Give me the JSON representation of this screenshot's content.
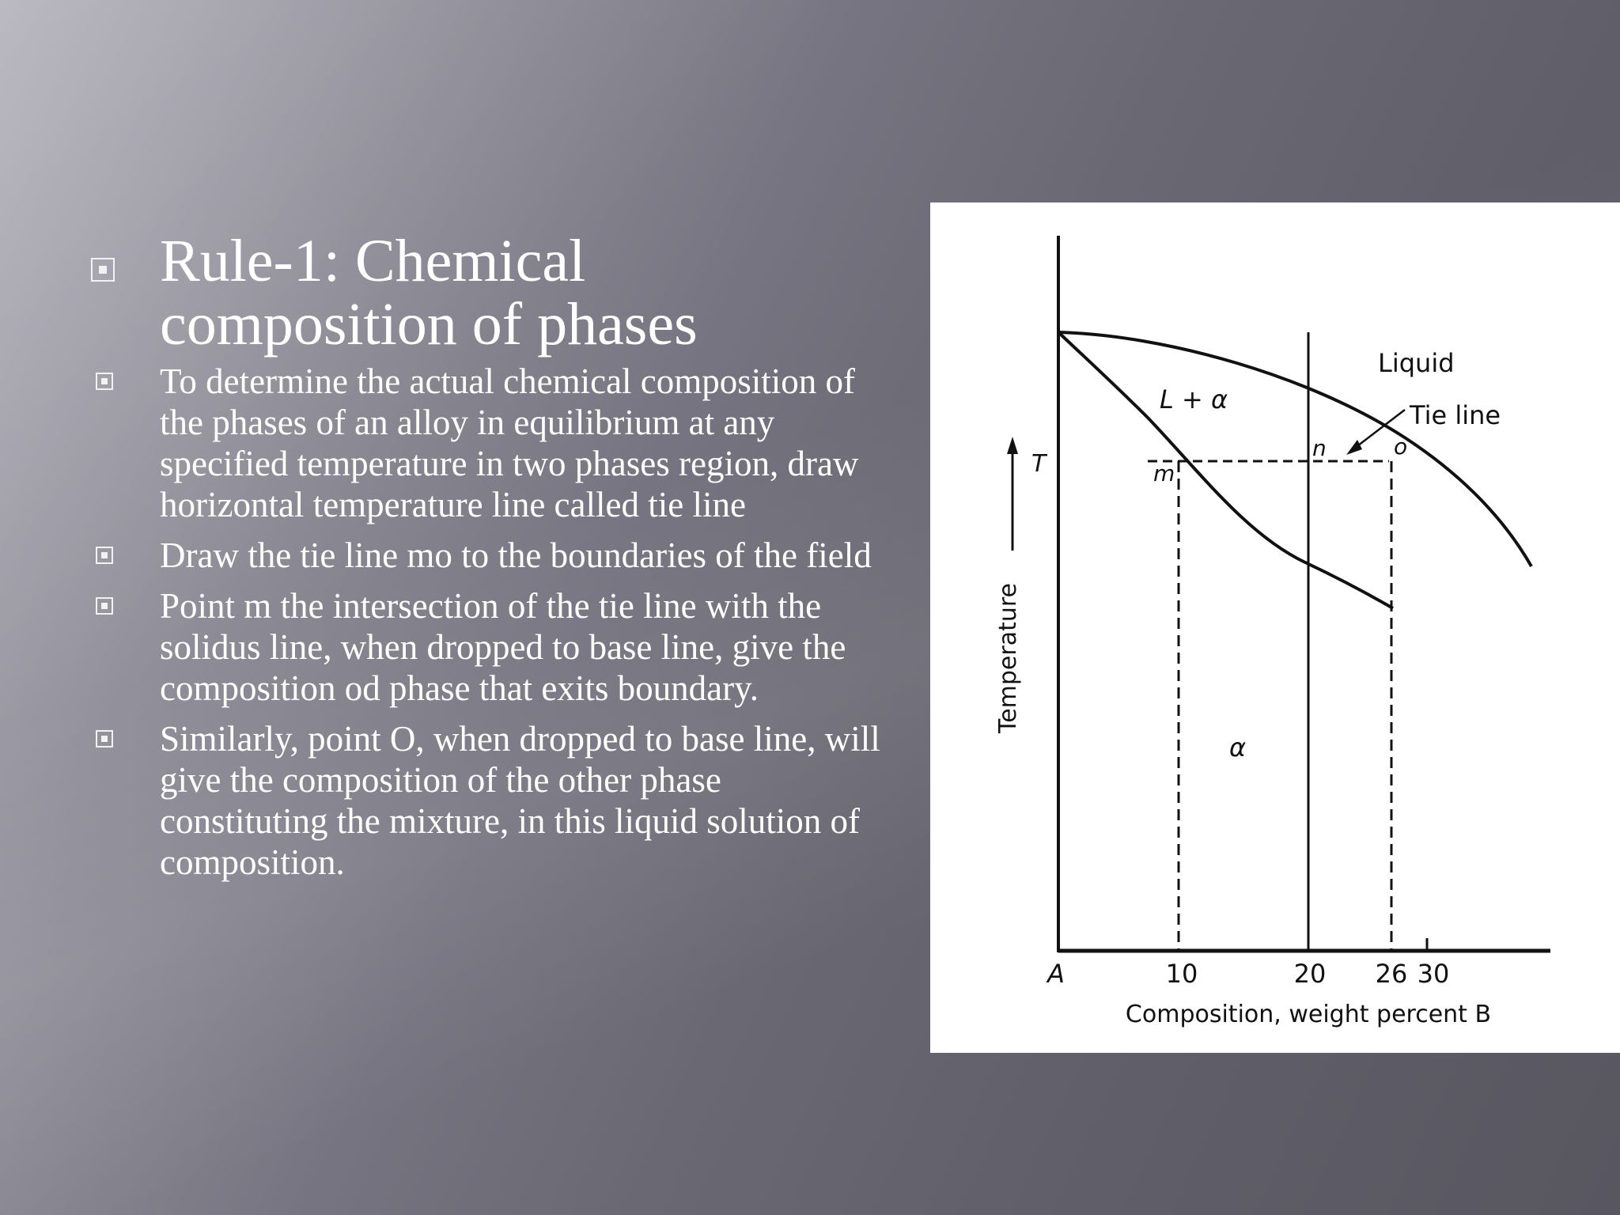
{
  "slide": {
    "title": "Rule-1: Chemical composition of phases",
    "bullets": [
      "To determine the actual chemical composition of the phases of an alloy in equilibrium at any specified temperature in two phases region, draw horizontal temperature line called tie line",
      "Draw the tie line mo to the boundaries of the field",
      "Point m the intersection of the tie line with the solidus line, when dropped to base line, give the composition od phase that exits boundary.",
      "Similarly, point O, when dropped to base line, will give the composition of the other phase constituting the mixture, in this liquid solution of composition."
    ],
    "bullet_icon": "square-dot-icon"
  },
  "figure": {
    "x_label": "Composition, weight percent B",
    "y_label": "Temperature",
    "y_arrow_label": "T",
    "x_ticks": [
      "A",
      "10",
      "20",
      "26",
      "30"
    ],
    "region_labels": {
      "liquid": "Liquid",
      "two_phase": "L + α",
      "solid": "α"
    },
    "annotation": "Tie line",
    "points": {
      "m": "m",
      "n": "n",
      "o": "o"
    }
  }
}
